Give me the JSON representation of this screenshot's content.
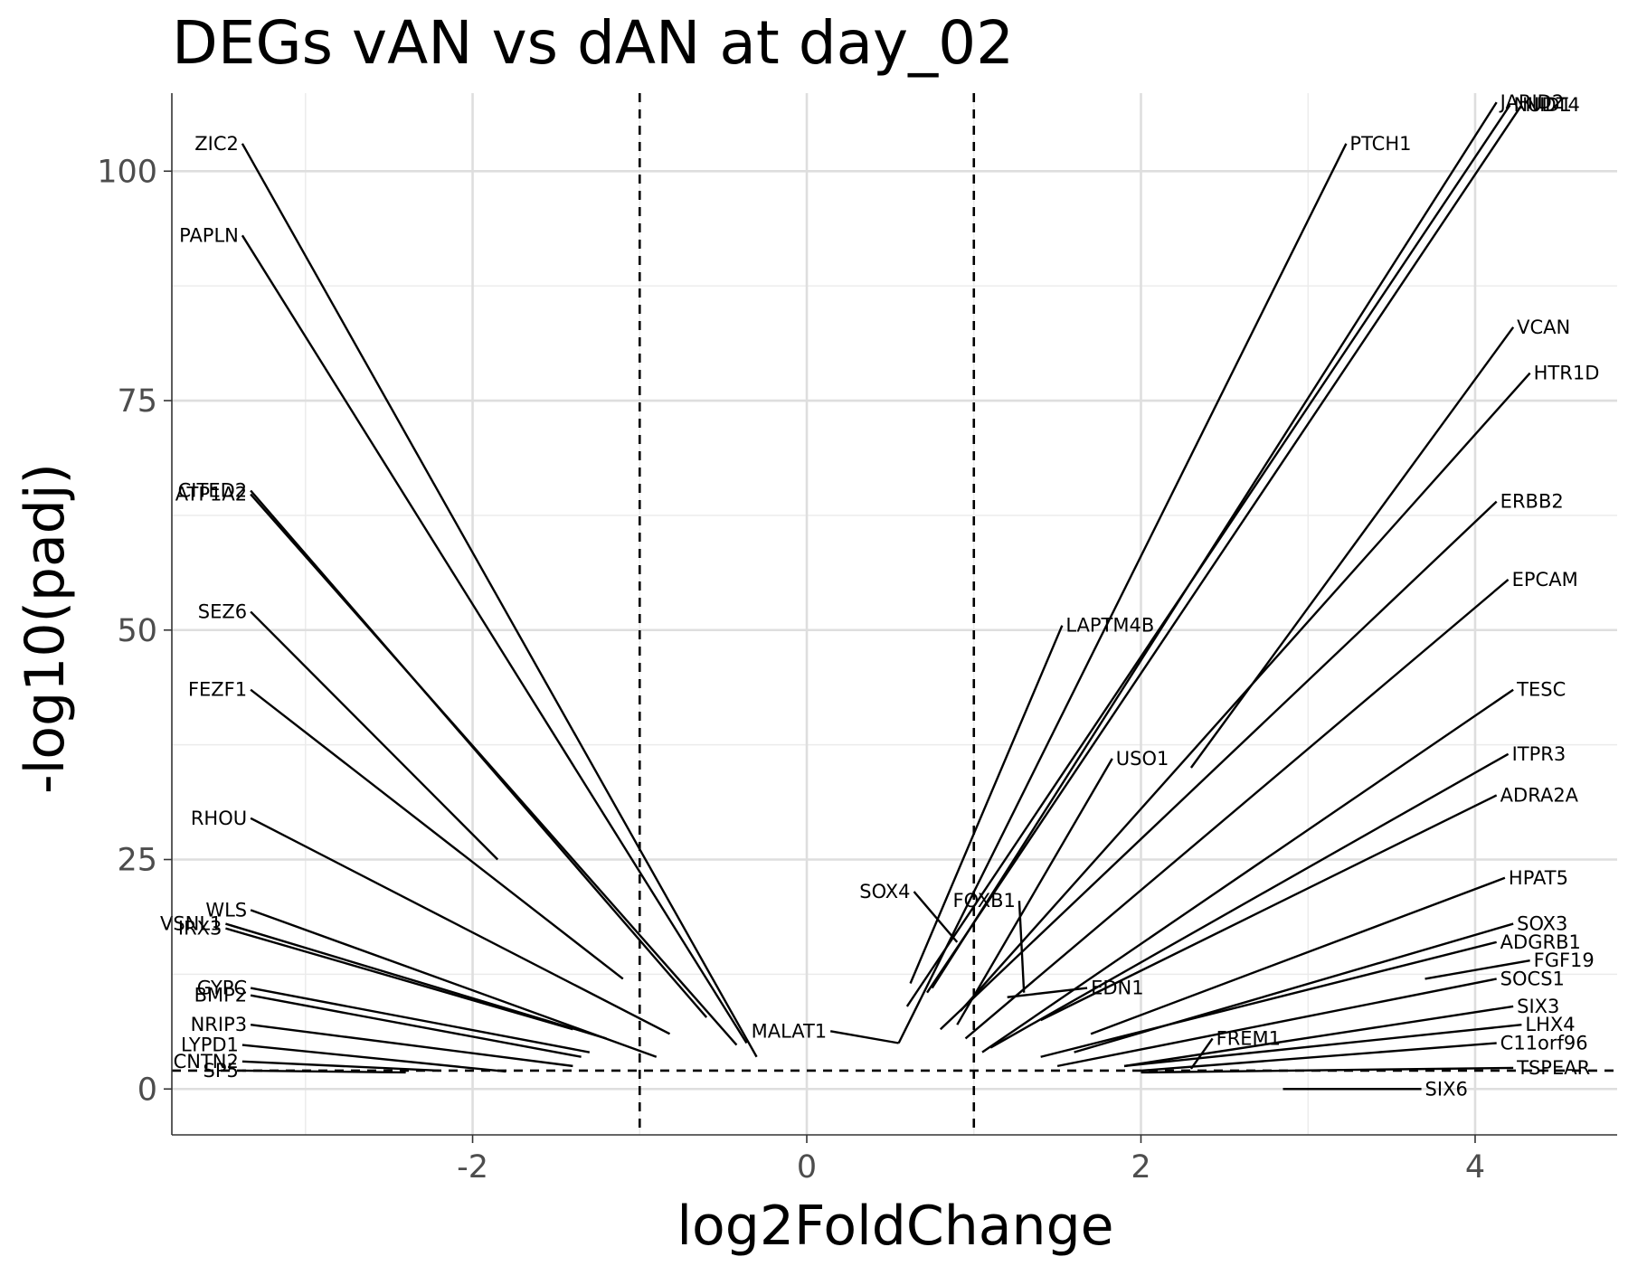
{
  "chart_data": {
    "type": "scatter",
    "title": "DEGs vAN vs dAN at day_02",
    "xlabel": "log2FoldChange",
    "ylabel": "-log10(padj)",
    "xlim": [
      -3.8,
      4.85
    ],
    "ylim": [
      -5,
      108.5
    ],
    "xticks": [
      -2,
      0,
      2,
      4
    ],
    "yticks": [
      0,
      25,
      50,
      75,
      100
    ],
    "grid": true,
    "thresholds": {
      "x": [
        -1,
        1
      ],
      "y": 2
    },
    "points": [
      {
        "gene": "ZIC2",
        "x": -0.3,
        "y": 3.5,
        "label_x": -3.4,
        "label_y": 103
      },
      {
        "gene": "PAPLN",
        "x": -0.36,
        "y": 5.0,
        "label_x": -3.4,
        "label_y": 93
      },
      {
        "gene": "CITED2",
        "x": -0.6,
        "y": 7.8,
        "label_x": -3.35,
        "label_y": 65.2
      },
      {
        "gene": "ATP1A2",
        "x": -0.42,
        "y": 4.8,
        "label_x": -3.35,
        "label_y": 64.8
      },
      {
        "gene": "SEZ6",
        "x": -1.85,
        "y": 25.0,
        "label_x": -3.35,
        "label_y": 52
      },
      {
        "gene": "FEZF1",
        "x": -1.1,
        "y": 12.0,
        "label_x": -3.35,
        "label_y": 43.5
      },
      {
        "gene": "RHOU",
        "x": -0.82,
        "y": 6.0,
        "label_x": -3.35,
        "label_y": 29.5
      },
      {
        "gene": "WLS",
        "x": -0.9,
        "y": 3.5,
        "label_x": -3.35,
        "label_y": 19.5
      },
      {
        "gene": "VSNL1",
        "x": -1.2,
        "y": 5.5,
        "label_x": -3.5,
        "label_y": 18.0
      },
      {
        "gene": "IRX3",
        "x": -1.4,
        "y": 6.5,
        "label_x": -3.5,
        "label_y": 17.5
      },
      {
        "gene": "GYPC",
        "x": -1.3,
        "y": 4.0,
        "label_x": -3.35,
        "label_y": 11.0
      },
      {
        "gene": "BMP2",
        "x": -1.35,
        "y": 3.5,
        "label_x": -3.35,
        "label_y": 10.2
      },
      {
        "gene": "NRIP3",
        "x": -1.4,
        "y": 2.5,
        "label_x": -3.35,
        "label_y": 7.0
      },
      {
        "gene": "LYPD1",
        "x": -1.8,
        "y": 1.9,
        "label_x": -3.4,
        "label_y": 4.8
      },
      {
        "gene": "CNTN2",
        "x": -2.2,
        "y": 2.0,
        "label_x": -3.4,
        "label_y": 3.0
      },
      {
        "gene": "SP5",
        "x": -2.4,
        "y": 1.8,
        "label_x": -3.4,
        "label_y": 2.0
      },
      {
        "gene": "JARID2",
        "x": 0.75,
        "y": 11.0,
        "label_x": 4.15,
        "label_y": 107.5
      },
      {
        "gene": "NID1",
        "x": 0.72,
        "y": 10.5,
        "label_x": 4.3,
        "label_y": 107.2
      },
      {
        "gene": "NUDT4",
        "x": 0.6,
        "y": 9.0,
        "label_x": 4.23,
        "label_y": 107.2
      },
      {
        "gene": "PTCH1",
        "x": 0.55,
        "y": 5.0,
        "label_x": 3.25,
        "label_y": 103
      },
      {
        "gene": "VCAN",
        "x": 2.3,
        "y": 35.0,
        "label_x": 4.25,
        "label_y": 83
      },
      {
        "gene": "HTR1D",
        "x": 0.92,
        "y": 8.5,
        "label_x": 4.35,
        "label_y": 78
      },
      {
        "gene": "ERBB2",
        "x": 0.8,
        "y": 6.5,
        "label_x": 4.15,
        "label_y": 64
      },
      {
        "gene": "EPCAM",
        "x": 0.95,
        "y": 5.5,
        "label_x": 4.22,
        "label_y": 55.5
      },
      {
        "gene": "LAPTM4B",
        "x": 0.62,
        "y": 11.5,
        "label_x": 1.55,
        "label_y": 50.5
      },
      {
        "gene": "TESC",
        "x": 1.05,
        "y": 4.0,
        "label_x": 4.25,
        "label_y": 43.5
      },
      {
        "gene": "USO1",
        "x": 0.9,
        "y": 7.0,
        "label_x": 1.85,
        "label_y": 36
      },
      {
        "gene": "ITPR3",
        "x": 1.1,
        "y": 4.5,
        "label_x": 4.22,
        "label_y": 36.5
      },
      {
        "gene": "ADRA2A",
        "x": 1.4,
        "y": 7.5,
        "label_x": 4.15,
        "label_y": 32
      },
      {
        "gene": "SOX4",
        "x": 0.9,
        "y": 16.0,
        "label_x": 0.62,
        "label_y": 21.5
      },
      {
        "gene": "FOXB1",
        "x": 1.3,
        "y": 10.5,
        "label_x": 1.25,
        "label_y": 20.5
      },
      {
        "gene": "HPAT5",
        "x": 1.7,
        "y": 6.0,
        "label_x": 4.2,
        "label_y": 23
      },
      {
        "gene": "SOX3",
        "x": 1.6,
        "y": 4.0,
        "label_x": 4.25,
        "label_y": 18.0
      },
      {
        "gene": "ADGRB1",
        "x": 1.4,
        "y": 3.5,
        "label_x": 4.15,
        "label_y": 16.0
      },
      {
        "gene": "FGF19",
        "x": 3.7,
        "y": 12.0,
        "label_x": 4.35,
        "label_y": 14.0
      },
      {
        "gene": "EDN1",
        "x": 1.2,
        "y": 10.0,
        "label_x": 1.7,
        "label_y": 11.0
      },
      {
        "gene": "SOCS1",
        "x": 1.5,
        "y": 2.5,
        "label_x": 4.15,
        "label_y": 12.0
      },
      {
        "gene": "SIX3",
        "x": 1.9,
        "y": 2.5,
        "label_x": 4.25,
        "label_y": 9.0
      },
      {
        "gene": "MALAT1",
        "x": 0.55,
        "y": 5.0,
        "label_x": 0.12,
        "label_y": 6.3
      },
      {
        "gene": "LHX4",
        "x": 1.9,
        "y": 2.5,
        "label_x": 4.3,
        "label_y": 7.0
      },
      {
        "gene": "FREM1",
        "x": 2.3,
        "y": 2.2,
        "label_x": 2.45,
        "label_y": 5.5
      },
      {
        "gene": "C11orf96",
        "x": 2.0,
        "y": 2.0,
        "label_x": 4.15,
        "label_y": 5.0
      },
      {
        "gene": "TSPEAR",
        "x": 2.0,
        "y": 1.8,
        "label_x": 4.25,
        "label_y": 2.3
      },
      {
        "gene": "SIX6",
        "x": 2.85,
        "y": 0.0,
        "label_x": 3.7,
        "label_y": 0.0
      }
    ]
  }
}
